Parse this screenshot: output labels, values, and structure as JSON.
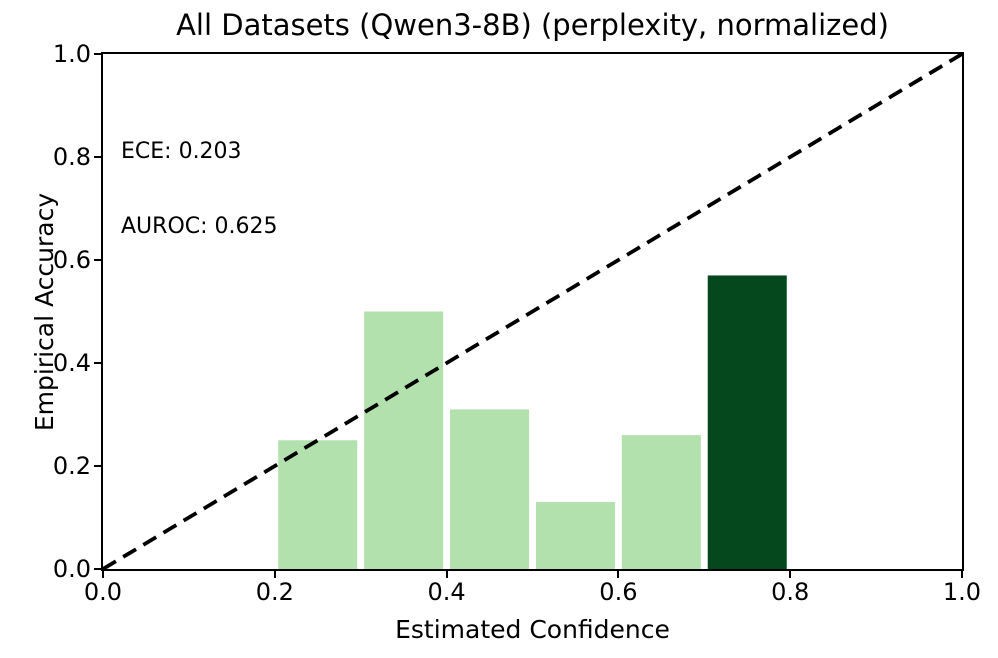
{
  "title": "All Datasets (Qwen3-8B) (perplexity, normalized)",
  "annotation": {
    "ece_label": "ECE: 0.203",
    "auroc_label": "AUROC: 0.625"
  },
  "axes": {
    "xlabel": "Estimated Confidence",
    "ylabel": "Empirical Accuracy",
    "x_tick_labels": [
      "0.0",
      "0.2",
      "0.4",
      "0.6",
      "0.8",
      "1.0"
    ],
    "y_tick_labels": [
      "0.0",
      "0.2",
      "0.4",
      "0.6",
      "0.8",
      "1.0"
    ],
    "x_tick_values": [
      0,
      0.2,
      0.4,
      0.6,
      0.8,
      1.0
    ],
    "y_tick_values": [
      0,
      0.2,
      0.4,
      0.6,
      0.8,
      1.0
    ]
  },
  "colors": {
    "bar_light": "#b3e1ae",
    "bar_dark": "#05481e",
    "reference_line": "#000000",
    "axis": "#000000",
    "background": "#ffffff"
  },
  "chart_data": {
    "type": "bar",
    "title": "All Datasets (Qwen3-8B) (perplexity, normalized)",
    "xlabel": "Estimated Confidence",
    "ylabel": "Empirical Accuracy",
    "xlim": [
      0,
      1
    ],
    "ylim": [
      0,
      1
    ],
    "grid": false,
    "legend": null,
    "bar_width": 0.092,
    "bin_width": 0.1,
    "x": [
      0.25,
      0.35,
      0.45,
      0.55,
      0.65,
      0.75
    ],
    "values": [
      0.25,
      0.5,
      0.31,
      0.13,
      0.26,
      0.57
    ],
    "bars": [
      {
        "x_center": 0.25,
        "height": 0.25,
        "color": "#b3e1ae"
      },
      {
        "x_center": 0.35,
        "height": 0.5,
        "color": "#b3e1ae"
      },
      {
        "x_center": 0.45,
        "height": 0.31,
        "color": "#b3e1ae"
      },
      {
        "x_center": 0.55,
        "height": 0.13,
        "color": "#b3e1ae"
      },
      {
        "x_center": 0.65,
        "height": 0.26,
        "color": "#b3e1ae"
      },
      {
        "x_center": 0.75,
        "height": 0.57,
        "color": "#05481e"
      }
    ],
    "reference_line": {
      "description": "perfect calibration diagonal y = x",
      "from": [
        0,
        0
      ],
      "to": [
        1,
        1
      ],
      "style": "dashed",
      "color": "#000000"
    },
    "metrics": {
      "ECE": 0.203,
      "AUROC": 0.625
    }
  }
}
